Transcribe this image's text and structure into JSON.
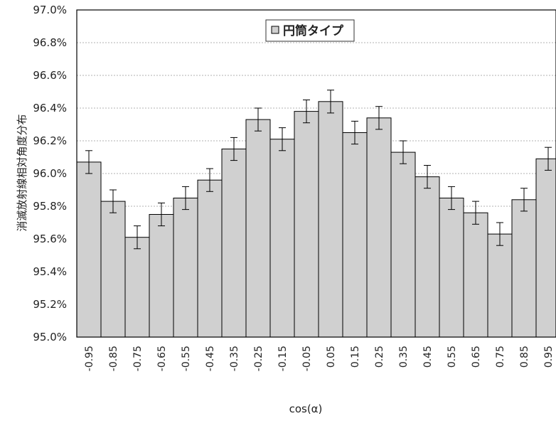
{
  "chart_data": {
    "type": "bar",
    "title": "",
    "xlabel": "cos(α)",
    "ylabel": "消滅放射線相対角度分布",
    "ylim": [
      95.0,
      97.0
    ],
    "ytick_step": 0.2,
    "ytick_labels": [
      "95.0%",
      "95.2%",
      "95.4%",
      "95.6%",
      "95.8%",
      "96.0%",
      "96.2%",
      "96.4%",
      "96.6%",
      "96.8%",
      "97.0%"
    ],
    "grid": true,
    "legend_position": "top-center",
    "categories": [
      "-0.95",
      "-0.85",
      "-0.75",
      "-0.65",
      "-0.55",
      "-0.45",
      "-0.35",
      "-0.25",
      "-0.15",
      "-0.05",
      "0.05",
      "0.15",
      "0.25",
      "0.35",
      "0.45",
      "0.55",
      "0.65",
      "0.75",
      "0.85",
      "0.95"
    ],
    "series": [
      {
        "name": "円筒タイプ",
        "color": "#d0d0d0",
        "values": [
          96.07,
          95.83,
          95.61,
          95.75,
          95.85,
          95.96,
          96.15,
          96.33,
          96.21,
          96.38,
          96.44,
          96.25,
          96.34,
          96.13,
          95.98,
          95.85,
          95.76,
          95.63,
          95.84,
          96.09
        ],
        "errors": [
          0.07,
          0.07,
          0.07,
          0.07,
          0.07,
          0.07,
          0.07,
          0.07,
          0.07,
          0.07,
          0.07,
          0.07,
          0.07,
          0.07,
          0.07,
          0.07,
          0.07,
          0.07,
          0.07,
          0.07
        ]
      }
    ]
  }
}
